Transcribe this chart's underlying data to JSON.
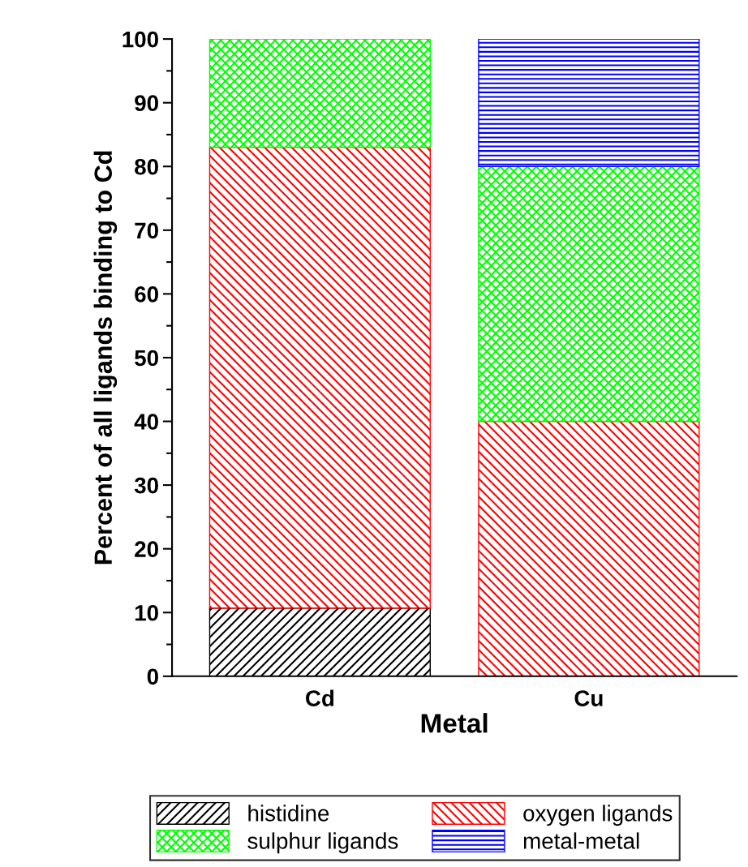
{
  "chart_data": {
    "type": "bar",
    "stacked": true,
    "xlabel": "Metal",
    "ylabel": "Percent of all ligands binding to Cd",
    "categories": [
      "Cd",
      "Cu"
    ],
    "series": [
      {
        "name": "histidine",
        "color": "#000000",
        "values": [
          10.7,
          null
        ]
      },
      {
        "name": "oxygen ligands",
        "color": "#ff0000",
        "values": [
          72.3,
          40
        ]
      },
      {
        "name": "sulphur ligands",
        "color": "#00ff00",
        "values": [
          17,
          40
        ]
      },
      {
        "name": "metal-metal",
        "color": "#0000ff",
        "values": [
          null,
          20
        ]
      }
    ],
    "ylim": [
      0,
      100
    ],
    "yticks": [
      0,
      10,
      20,
      30,
      40,
      50,
      60,
      70,
      80,
      90,
      100
    ],
    "grid": false,
    "legend": "bottom"
  }
}
